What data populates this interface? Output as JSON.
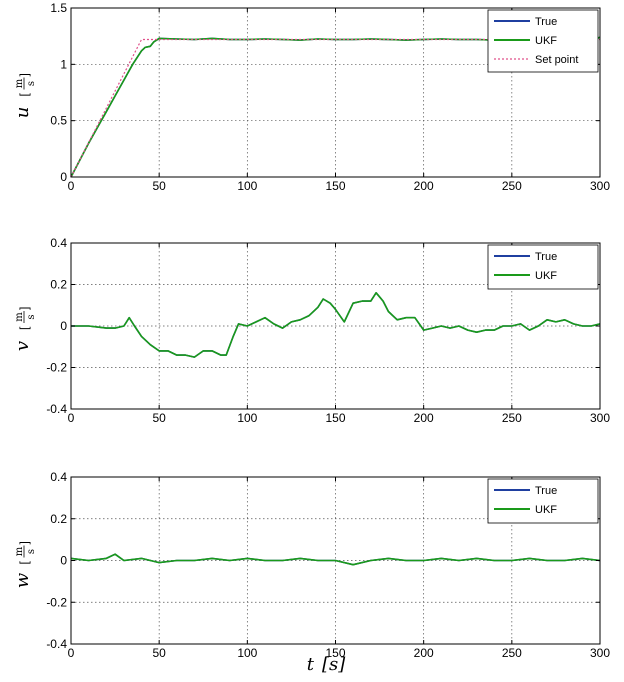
{
  "chart_data": [
    {
      "type": "line",
      "ylabel": "u",
      "yunit_num": "m",
      "yunit_den": "s",
      "xlim": [
        0,
        300
      ],
      "ylim": [
        0,
        1.5
      ],
      "xticks": [
        0,
        50,
        100,
        150,
        200,
        250,
        300
      ],
      "yticks": [
        0,
        0.5,
        1,
        1.5
      ],
      "grid": true,
      "legend_position": "top-right",
      "series": [
        {
          "name": "True",
          "color": "#1f3fa0",
          "x": [
            0,
            5,
            10,
            15,
            20,
            25,
            30,
            35,
            40,
            42,
            45,
            47,
            50,
            60,
            70,
            80,
            90,
            100,
            110,
            120,
            130,
            140,
            150,
            160,
            170,
            180,
            190,
            200,
            210,
            220,
            230,
            240,
            250,
            260,
            270,
            280,
            290,
            295,
            300
          ],
          "y": [
            0,
            0.15,
            0.3,
            0.44,
            0.58,
            0.72,
            0.86,
            1.0,
            1.12,
            1.15,
            1.16,
            1.2,
            1.23,
            1.225,
            1.22,
            1.23,
            1.22,
            1.22,
            1.225,
            1.22,
            1.215,
            1.225,
            1.22,
            1.22,
            1.225,
            1.22,
            1.215,
            1.22,
            1.225,
            1.22,
            1.22,
            1.215,
            1.22,
            1.225,
            1.22,
            1.22,
            1.22,
            1.21,
            1.24
          ]
        },
        {
          "name": "UKF",
          "color": "#1a9a1a",
          "x": [
            0,
            5,
            10,
            15,
            20,
            25,
            30,
            35,
            40,
            42,
            45,
            47,
            50,
            60,
            70,
            80,
            90,
            100,
            110,
            120,
            130,
            140,
            150,
            160,
            170,
            180,
            190,
            200,
            210,
            220,
            230,
            240,
            250,
            260,
            270,
            280,
            290,
            295,
            300
          ],
          "y": [
            0,
            0.15,
            0.3,
            0.44,
            0.58,
            0.72,
            0.86,
            1.0,
            1.12,
            1.15,
            1.16,
            1.2,
            1.23,
            1.225,
            1.22,
            1.23,
            1.22,
            1.22,
            1.225,
            1.22,
            1.215,
            1.225,
            1.22,
            1.22,
            1.225,
            1.22,
            1.215,
            1.22,
            1.225,
            1.22,
            1.22,
            1.215,
            1.22,
            1.225,
            1.22,
            1.22,
            1.22,
            1.21,
            1.24
          ]
        },
        {
          "name": "Set point",
          "color": "#e0508a",
          "dashed": true,
          "x": [
            0,
            40,
            300
          ],
          "y": [
            0,
            1.22,
            1.22
          ]
        }
      ]
    },
    {
      "type": "line",
      "ylabel": "v",
      "yunit_num": "m",
      "yunit_den": "s",
      "xlim": [
        0,
        300
      ],
      "ylim": [
        -0.4,
        0.4
      ],
      "xticks": [
        0,
        50,
        100,
        150,
        200,
        250,
        300
      ],
      "yticks": [
        -0.4,
        -0.2,
        0,
        0.2,
        0.4
      ],
      "grid": true,
      "legend_position": "top-right",
      "series": [
        {
          "name": "True",
          "color": "#1f3fa0",
          "x": [
            0,
            10,
            20,
            25,
            30,
            33,
            36,
            40,
            45,
            50,
            55,
            60,
            65,
            70,
            75,
            80,
            85,
            88,
            92,
            95,
            100,
            105,
            110,
            115,
            120,
            125,
            130,
            135,
            140,
            143,
            147,
            150,
            155,
            160,
            165,
            170,
            173,
            177,
            180,
            185,
            190,
            195,
            200,
            205,
            210,
            215,
            220,
            225,
            230,
            235,
            240,
            245,
            250,
            255,
            260,
            265,
            270,
            275,
            280,
            285,
            290,
            295,
            300
          ],
          "y": [
            0,
            0,
            -0.01,
            -0.01,
            0,
            0.04,
            0.0,
            -0.05,
            -0.09,
            -0.12,
            -0.12,
            -0.14,
            -0.14,
            -0.15,
            -0.12,
            -0.12,
            -0.14,
            -0.14,
            -0.05,
            0.01,
            0.0,
            0.02,
            0.04,
            0.01,
            -0.01,
            0.02,
            0.03,
            0.05,
            0.09,
            0.13,
            0.11,
            0.08,
            0.02,
            0.11,
            0.12,
            0.12,
            0.16,
            0.12,
            0.07,
            0.03,
            0.04,
            0.04,
            -0.02,
            -0.01,
            0.0,
            -0.01,
            0.0,
            -0.02,
            -0.03,
            -0.02,
            -0.02,
            0.0,
            0.0,
            0.01,
            -0.02,
            0.0,
            0.03,
            0.02,
            0.03,
            0.01,
            0.0,
            0.0,
            0.01
          ]
        },
        {
          "name": "UKF",
          "color": "#1a9a1a",
          "x": [
            0,
            10,
            20,
            25,
            30,
            33,
            36,
            40,
            45,
            50,
            55,
            60,
            65,
            70,
            75,
            80,
            85,
            88,
            92,
            95,
            100,
            105,
            110,
            115,
            120,
            125,
            130,
            135,
            140,
            143,
            147,
            150,
            155,
            160,
            165,
            170,
            173,
            177,
            180,
            185,
            190,
            195,
            200,
            205,
            210,
            215,
            220,
            225,
            230,
            235,
            240,
            245,
            250,
            255,
            260,
            265,
            270,
            275,
            280,
            285,
            290,
            295,
            300
          ],
          "y": [
            0,
            0,
            -0.01,
            -0.01,
            0,
            0.04,
            0.0,
            -0.05,
            -0.09,
            -0.12,
            -0.12,
            -0.14,
            -0.14,
            -0.15,
            -0.12,
            -0.12,
            -0.14,
            -0.14,
            -0.05,
            0.01,
            0.0,
            0.02,
            0.04,
            0.01,
            -0.01,
            0.02,
            0.03,
            0.05,
            0.09,
            0.13,
            0.11,
            0.08,
            0.02,
            0.11,
            0.12,
            0.12,
            0.16,
            0.12,
            0.07,
            0.03,
            0.04,
            0.04,
            -0.02,
            -0.01,
            0.0,
            -0.01,
            0.0,
            -0.02,
            -0.03,
            -0.02,
            -0.02,
            0.0,
            0.0,
            0.01,
            -0.02,
            0.0,
            0.03,
            0.02,
            0.03,
            0.01,
            0.0,
            0.0,
            0.01
          ]
        }
      ]
    },
    {
      "type": "line",
      "ylabel": "w",
      "yunit_num": "m",
      "yunit_den": "s",
      "xlim": [
        0,
        300
      ],
      "ylim": [
        -0.4,
        0.4
      ],
      "xticks": [
        0,
        50,
        100,
        150,
        200,
        250,
        300
      ],
      "yticks": [
        -0.4,
        -0.2,
        0,
        0.2,
        0.4
      ],
      "xlabel": "t",
      "xunit": "s",
      "grid": true,
      "legend_position": "top-right",
      "series": [
        {
          "name": "True",
          "color": "#1f3fa0",
          "x": [
            0,
            10,
            20,
            25,
            30,
            40,
            50,
            60,
            70,
            80,
            90,
            100,
            110,
            120,
            130,
            140,
            150,
            160,
            170,
            180,
            190,
            200,
            210,
            220,
            230,
            240,
            250,
            260,
            270,
            280,
            290,
            300
          ],
          "y": [
            0.01,
            0.0,
            0.01,
            0.03,
            0.0,
            0.01,
            -0.01,
            0.0,
            0.0,
            0.01,
            0.0,
            0.01,
            0.0,
            0.0,
            0.01,
            0.0,
            0.0,
            -0.02,
            0.0,
            0.01,
            0.0,
            0.0,
            0.01,
            0.0,
            0.01,
            0.0,
            0.0,
            0.01,
            0.0,
            0.0,
            0.01,
            0.0
          ]
        },
        {
          "name": "UKF",
          "color": "#1a9a1a",
          "x": [
            0,
            10,
            20,
            25,
            30,
            40,
            50,
            60,
            70,
            80,
            90,
            100,
            110,
            120,
            130,
            140,
            150,
            160,
            170,
            180,
            190,
            200,
            210,
            220,
            230,
            240,
            250,
            260,
            270,
            280,
            290,
            300
          ],
          "y": [
            0.01,
            0.0,
            0.01,
            0.03,
            0.0,
            0.01,
            -0.01,
            0.0,
            0.0,
            0.01,
            0.0,
            0.01,
            0.0,
            0.0,
            0.01,
            0.0,
            0.0,
            -0.02,
            0.0,
            0.01,
            0.0,
            0.0,
            0.01,
            0.0,
            0.01,
            0.0,
            0.0,
            0.01,
            0.0,
            0.0,
            0.01,
            0.0
          ]
        }
      ]
    }
  ]
}
